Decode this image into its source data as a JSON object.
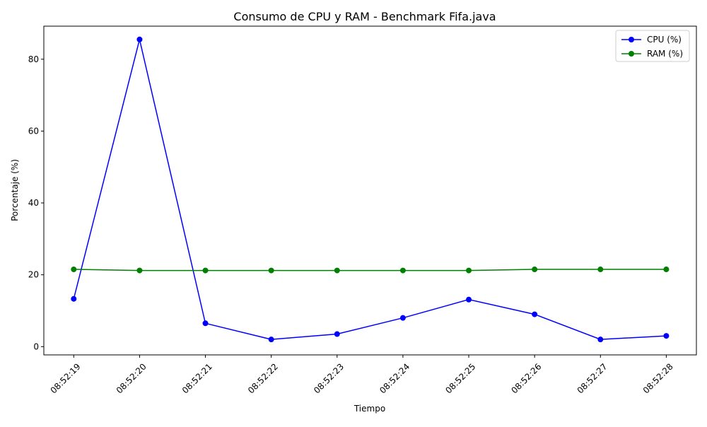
{
  "chart_data": {
    "type": "line",
    "title": "Consumo de CPU y RAM - Benchmark Fifa.java",
    "xlabel": "Tiempo",
    "ylabel": "Porcentaje (%)",
    "categories": [
      "08:52:19",
      "08:52:20",
      "08:52:21",
      "08:52:22",
      "08:52:23",
      "08:52:24",
      "08:52:25",
      "08:52:26",
      "08:52:27",
      "08:52:28"
    ],
    "series": [
      {
        "name": "CPU (%)",
        "color": "#0000ff",
        "values": [
          13.3,
          85.5,
          6.5,
          2.0,
          3.5,
          8.0,
          13.1,
          9.0,
          2.0,
          3.0
        ]
      },
      {
        "name": "RAM (%)",
        "color": "#008000",
        "values": [
          21.5,
          21.2,
          21.2,
          21.2,
          21.2,
          21.2,
          21.2,
          21.5,
          21.5,
          21.5
        ]
      }
    ],
    "ylim": [
      -2.3,
      89.2
    ],
    "yticks": [
      0,
      20,
      40,
      60,
      80
    ],
    "ytick_labels": [
      "0",
      "20",
      "40",
      "60",
      "80"
    ],
    "legend_position": "top-right",
    "grid": false
  }
}
